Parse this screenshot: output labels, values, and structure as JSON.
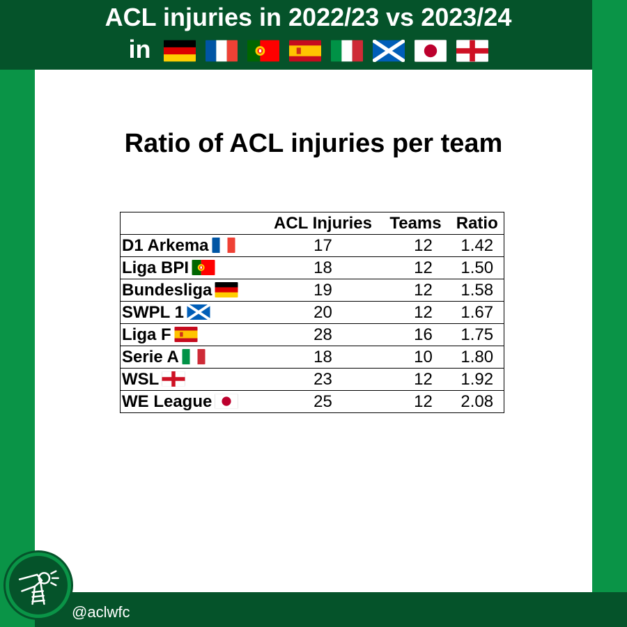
{
  "header": {
    "title_line1": "ACL injuries in 2022/23 vs 2023/24",
    "title_line2_prefix": "in",
    "flags": [
      "germany-flag-icon",
      "france-flag-icon",
      "portugal-flag-icon",
      "spain-flag-icon",
      "italy-flag-icon",
      "scotland-flag-icon",
      "japan-flag-icon",
      "england-flag-icon"
    ]
  },
  "chart_title": "Ratio of ACL injuries per team",
  "chart_data": {
    "type": "table",
    "columns": [
      "",
      "ACL Injuries",
      "Teams",
      "Ratio"
    ],
    "rows": [
      {
        "league": "D1 Arkema",
        "flag": "france-flag-icon",
        "injuries": "17",
        "teams": "12",
        "ratio": "1.42"
      },
      {
        "league": "Liga BPI",
        "flag": "portugal-flag-icon",
        "injuries": "18",
        "teams": "12",
        "ratio": "1.50"
      },
      {
        "league": "Bundesliga",
        "flag": "germany-flag-icon",
        "injuries": "19",
        "teams": "12",
        "ratio": "1.58"
      },
      {
        "league": "SWPL 1",
        "flag": "scotland-flag-icon",
        "injuries": "20",
        "teams": "12",
        "ratio": "1.67"
      },
      {
        "league": "Liga F",
        "flag": "spain-flag-icon",
        "injuries": "28",
        "teams": "16",
        "ratio": "1.75"
      },
      {
        "league": "Serie A",
        "flag": "italy-flag-icon",
        "injuries": "18",
        "teams": "10",
        "ratio": "1.80"
      },
      {
        "league": "WSL",
        "flag": "england-flag-icon",
        "injuries": "23",
        "teams": "12",
        "ratio": "1.92"
      },
      {
        "league": "WE League",
        "flag": "japan-flag-icon",
        "injuries": "25",
        "teams": "12",
        "ratio": "2.08"
      }
    ]
  },
  "footer": {
    "handle": "@aclwfc",
    "logo_icon": "knee-injury-logo-icon"
  },
  "colors": {
    "dark_green": "#05532a",
    "green": "#0a9447",
    "panel": "#ffffff"
  }
}
